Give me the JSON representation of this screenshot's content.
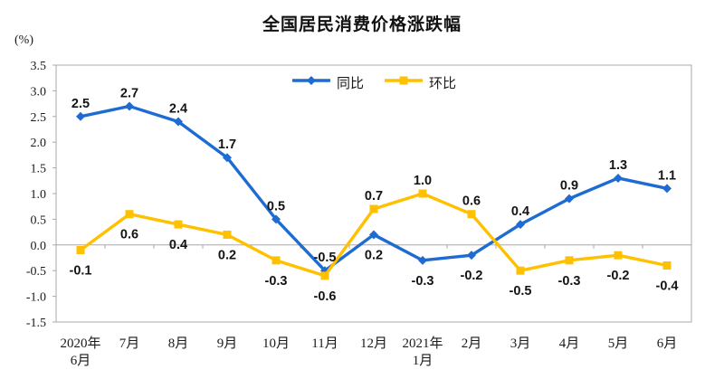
{
  "header": {
    "title": "全国居民消费价格涨跌幅",
    "unit_label": "(%)"
  },
  "chart_data": {
    "type": "line",
    "title": "全国居民消费价格涨跌幅",
    "ylabel": "(%)",
    "xlabel": "",
    "ylim": [
      -1.5,
      3.5
    ],
    "yticks": [
      3.5,
      3.0,
      2.5,
      2.0,
      1.5,
      1.0,
      0.5,
      0.0,
      -0.5,
      -1.0,
      -1.5
    ],
    "grid": false,
    "legend_position": "top-center-inside",
    "axis_color": "#a8a8a8",
    "label_color": "#141414",
    "categories": [
      [
        "2020年",
        "6月"
      ],
      [
        "7月"
      ],
      [
        "8月"
      ],
      [
        "9月"
      ],
      [
        "10月"
      ],
      [
        "11月"
      ],
      [
        "12月"
      ],
      [
        "2021年",
        "1月"
      ],
      [
        "2月"
      ],
      [
        "3月"
      ],
      [
        "4月"
      ],
      [
        "5月"
      ],
      [
        "6月"
      ]
    ],
    "series": [
      {
        "name": "同比",
        "color": "#1e6bd2",
        "marker": "diamond",
        "values": [
          2.5,
          2.7,
          2.4,
          1.7,
          0.5,
          -0.5,
          0.2,
          -0.3,
          -0.2,
          0.4,
          0.9,
          1.3,
          1.1
        ],
        "label_positions": [
          "above",
          "above",
          "above",
          "above",
          "above",
          "above",
          "below",
          "below",
          "below",
          "above",
          "above",
          "above",
          "above"
        ]
      },
      {
        "name": "环比",
        "color": "#ffc000",
        "marker": "square",
        "values": [
          -0.1,
          0.6,
          0.4,
          0.2,
          -0.3,
          -0.6,
          0.7,
          1.0,
          0.6,
          -0.5,
          -0.3,
          -0.2,
          -0.4
        ],
        "label_positions": [
          "below",
          "below",
          "below",
          "below",
          "below",
          "below",
          "above",
          "above",
          "above",
          "below",
          "below",
          "below",
          "below"
        ]
      }
    ]
  }
}
